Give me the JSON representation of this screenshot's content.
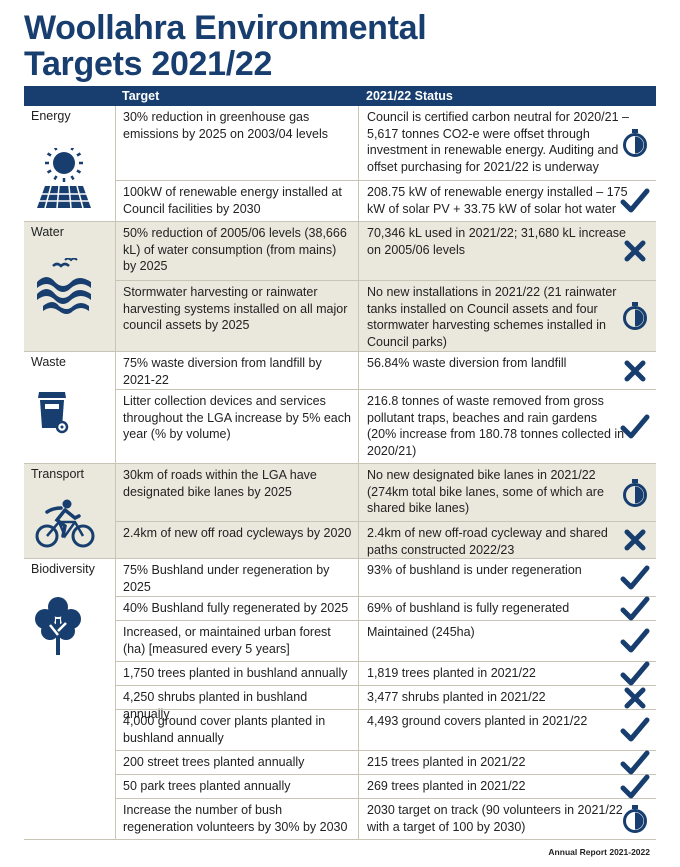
{
  "title": {
    "line1": "Woollahra Environmental",
    "line2": "Targets 2021/22"
  },
  "headers": {
    "category": "",
    "target": "Target",
    "status": "2021/22 Status"
  },
  "sections": [
    {
      "name": "Energy",
      "icon": "solar-panel-icon",
      "shaded": false,
      "rows": [
        {
          "target": "30% reduction in greenhouse gas emissions by 2025 on 2003/04 levels",
          "status": "Council is certified carbon neutral for 2020/21 – 5,617 tonnes CO2-e were offset through investment in renewable energy. Auditing and offset purchasing for 2021/22 is underway",
          "icon": "in-progress"
        },
        {
          "target": "100kW of renewable energy installed at Council facilities by 2030",
          "status": "208.75 kW of renewable energy installed – 175 kW of solar PV + 33.75 kW of solar hot water",
          "icon": "achieved"
        }
      ]
    },
    {
      "name": "Water",
      "icon": "water-waves-icon",
      "shaded": true,
      "rows": [
        {
          "target": "50% reduction of 2005/06 levels (38,666 kL) of water consumption (from mains) by 2025",
          "status": "70,346 kL used in 2021/22; 31,680 kL increase on 2005/06 levels",
          "icon": "not-achieved"
        },
        {
          "target": "Stormwater harvesting or rainwater harvesting systems installed on all major council assets by 2025",
          "status": "No new installations in 2021/22 (21 rainwater tanks installed on Council assets and four stormwater harvesting schemes installed in Council parks)",
          "icon": "in-progress"
        }
      ]
    },
    {
      "name": "Waste",
      "icon": "wheelie-bin-icon",
      "shaded": false,
      "rows": [
        {
          "target": "75% waste diversion from landfill by 2021-22",
          "status": "56.84% waste diversion from landfill",
          "icon": "not-achieved"
        },
        {
          "target": "Litter collection devices and services throughout the LGA increase by 5% each year (% by volume)",
          "status": "216.8 tonnes of waste removed from gross pollutant traps, beaches and rain gardens (20% increase from 180.78 tonnes collected in 2020/21)",
          "icon": "achieved"
        }
      ]
    },
    {
      "name": "Transport",
      "icon": "cyclist-icon",
      "shaded": true,
      "rows": [
        {
          "target": "30km of roads within the LGA have designated bike lanes by 2025",
          "status": "No new designated bike lanes in 2021/22 (274km total bike lanes, some of which are shared bike lanes)",
          "icon": "in-progress"
        },
        {
          "target": "2.4km of new off road cycleways by 2020",
          "status": "2.4km of new off-road cycleway and shared paths constructed 2022/23",
          "icon": "not-achieved"
        }
      ]
    },
    {
      "name": "Biodiversity",
      "icon": "tree-icon",
      "shaded": false,
      "rows": [
        {
          "target": "75% Bushland under regeneration by 2025",
          "status": "93% of bushland is under regeneration",
          "icon": "achieved"
        },
        {
          "target": "40% Bushland fully regenerated by 2025",
          "status": "69% of bushland is fully regenerated",
          "icon": "achieved"
        },
        {
          "target": "Increased, or maintained urban forest (ha) [measured every 5 years]",
          "status": "Maintained (245ha)",
          "icon": "achieved"
        },
        {
          "target": "1,750 trees planted in bushland annually",
          "status": "1,819 trees planted in 2021/22",
          "icon": "achieved"
        },
        {
          "target": "4,250 shrubs planted in bushland annually",
          "status": "3,477 shrubs planted in 2021/22",
          "icon": "not-achieved"
        },
        {
          "target": "4,000 ground cover plants planted in bushland annually",
          "status": "4,493 ground covers planted in 2021/22",
          "icon": "achieved"
        },
        {
          "target": "200 street trees planted annually",
          "status": "215 trees planted in 2021/22",
          "icon": "achieved"
        },
        {
          "target": "50 park trees planted annually",
          "status": "269 trees planted in 2021/22",
          "icon": "achieved"
        },
        {
          "target": "Increase the number of bush regeneration volunteers by 30% by 2030",
          "status": "2030 target on track (90 volunteers in 2021/22 with a target of 100 by 2030)",
          "icon": "in-progress"
        }
      ]
    }
  ],
  "footer": "Annual Report 2021-2022",
  "colors": {
    "navy": "#173e6e",
    "tan": "#eae8dd",
    "divider": "#c9c5b6"
  }
}
